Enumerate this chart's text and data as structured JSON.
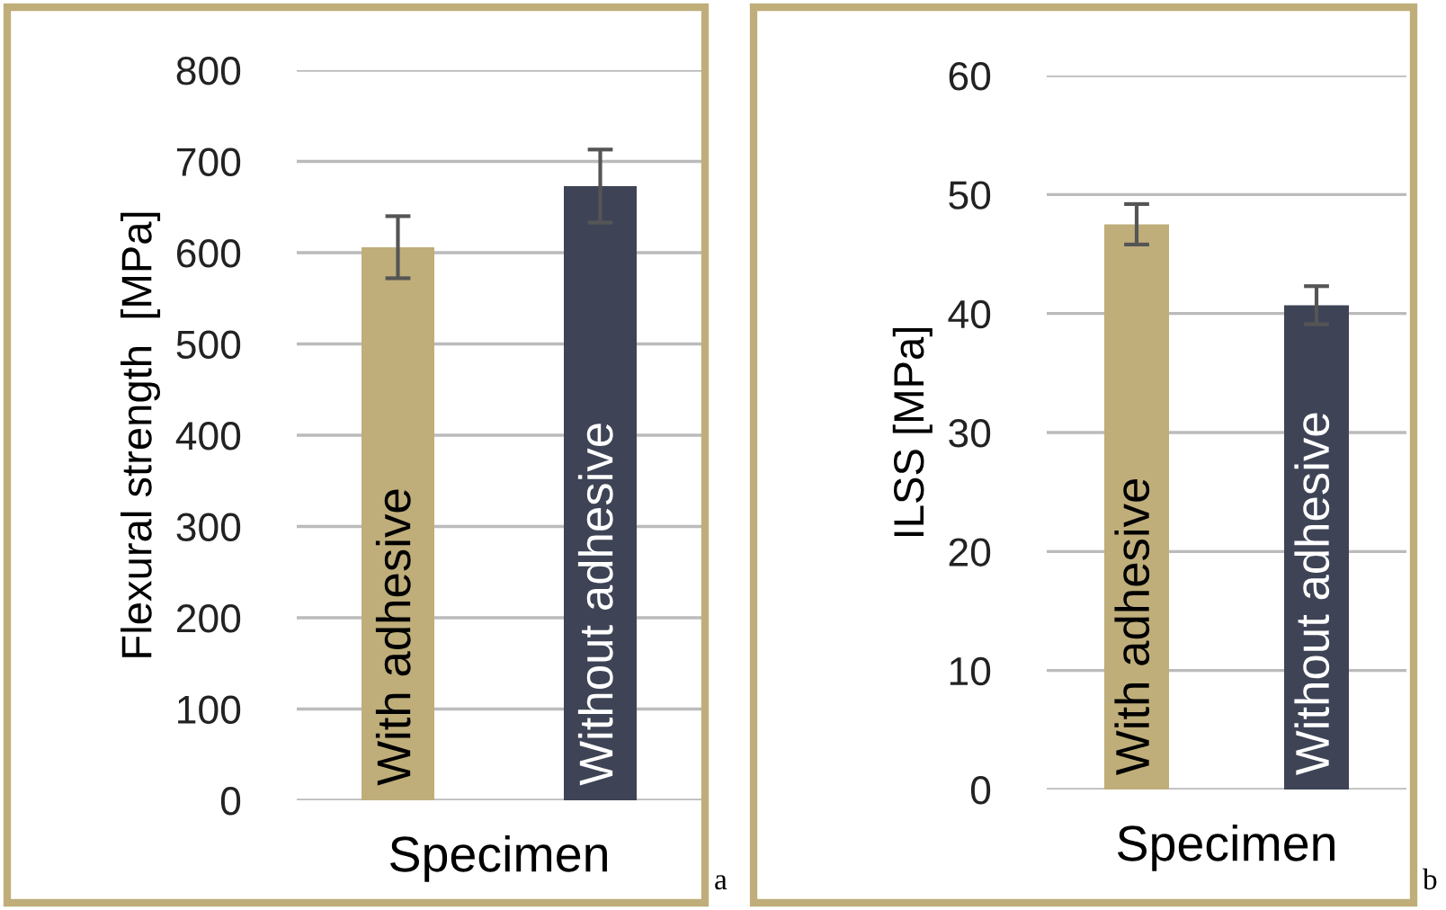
{
  "chart_data": [
    {
      "type": "bar",
      "xlabel": "Specimen",
      "ylabel": "Flexural strength  [MPa]",
      "categories": [
        "With adhesive",
        "Without adhesive"
      ],
      "values": [
        606,
        673
      ],
      "colors": [
        "#bfae7a",
        "#3e4456"
      ],
      "errors": [
        34,
        40
      ],
      "ylim": [
        0,
        800
      ],
      "yticks": [
        0,
        100,
        200,
        300,
        400,
        500,
        600,
        700,
        800
      ],
      "grid": "y",
      "annotations": [
        "a"
      ]
    },
    {
      "type": "bar",
      "xlabel": "Specimen",
      "ylabel": "ILSS [MPa]",
      "categories": [
        "With adhesive",
        "Without adhesive"
      ],
      "values": [
        47.5,
        40.7
      ],
      "colors": [
        "#bfae7a",
        "#3e4456"
      ],
      "errors": [
        1.7,
        1.6
      ],
      "ylim": [
        0,
        60
      ],
      "yticks": [
        0,
        10,
        20,
        30,
        40,
        50,
        60
      ],
      "grid": "y",
      "annotations": [
        "b"
      ]
    }
  ]
}
